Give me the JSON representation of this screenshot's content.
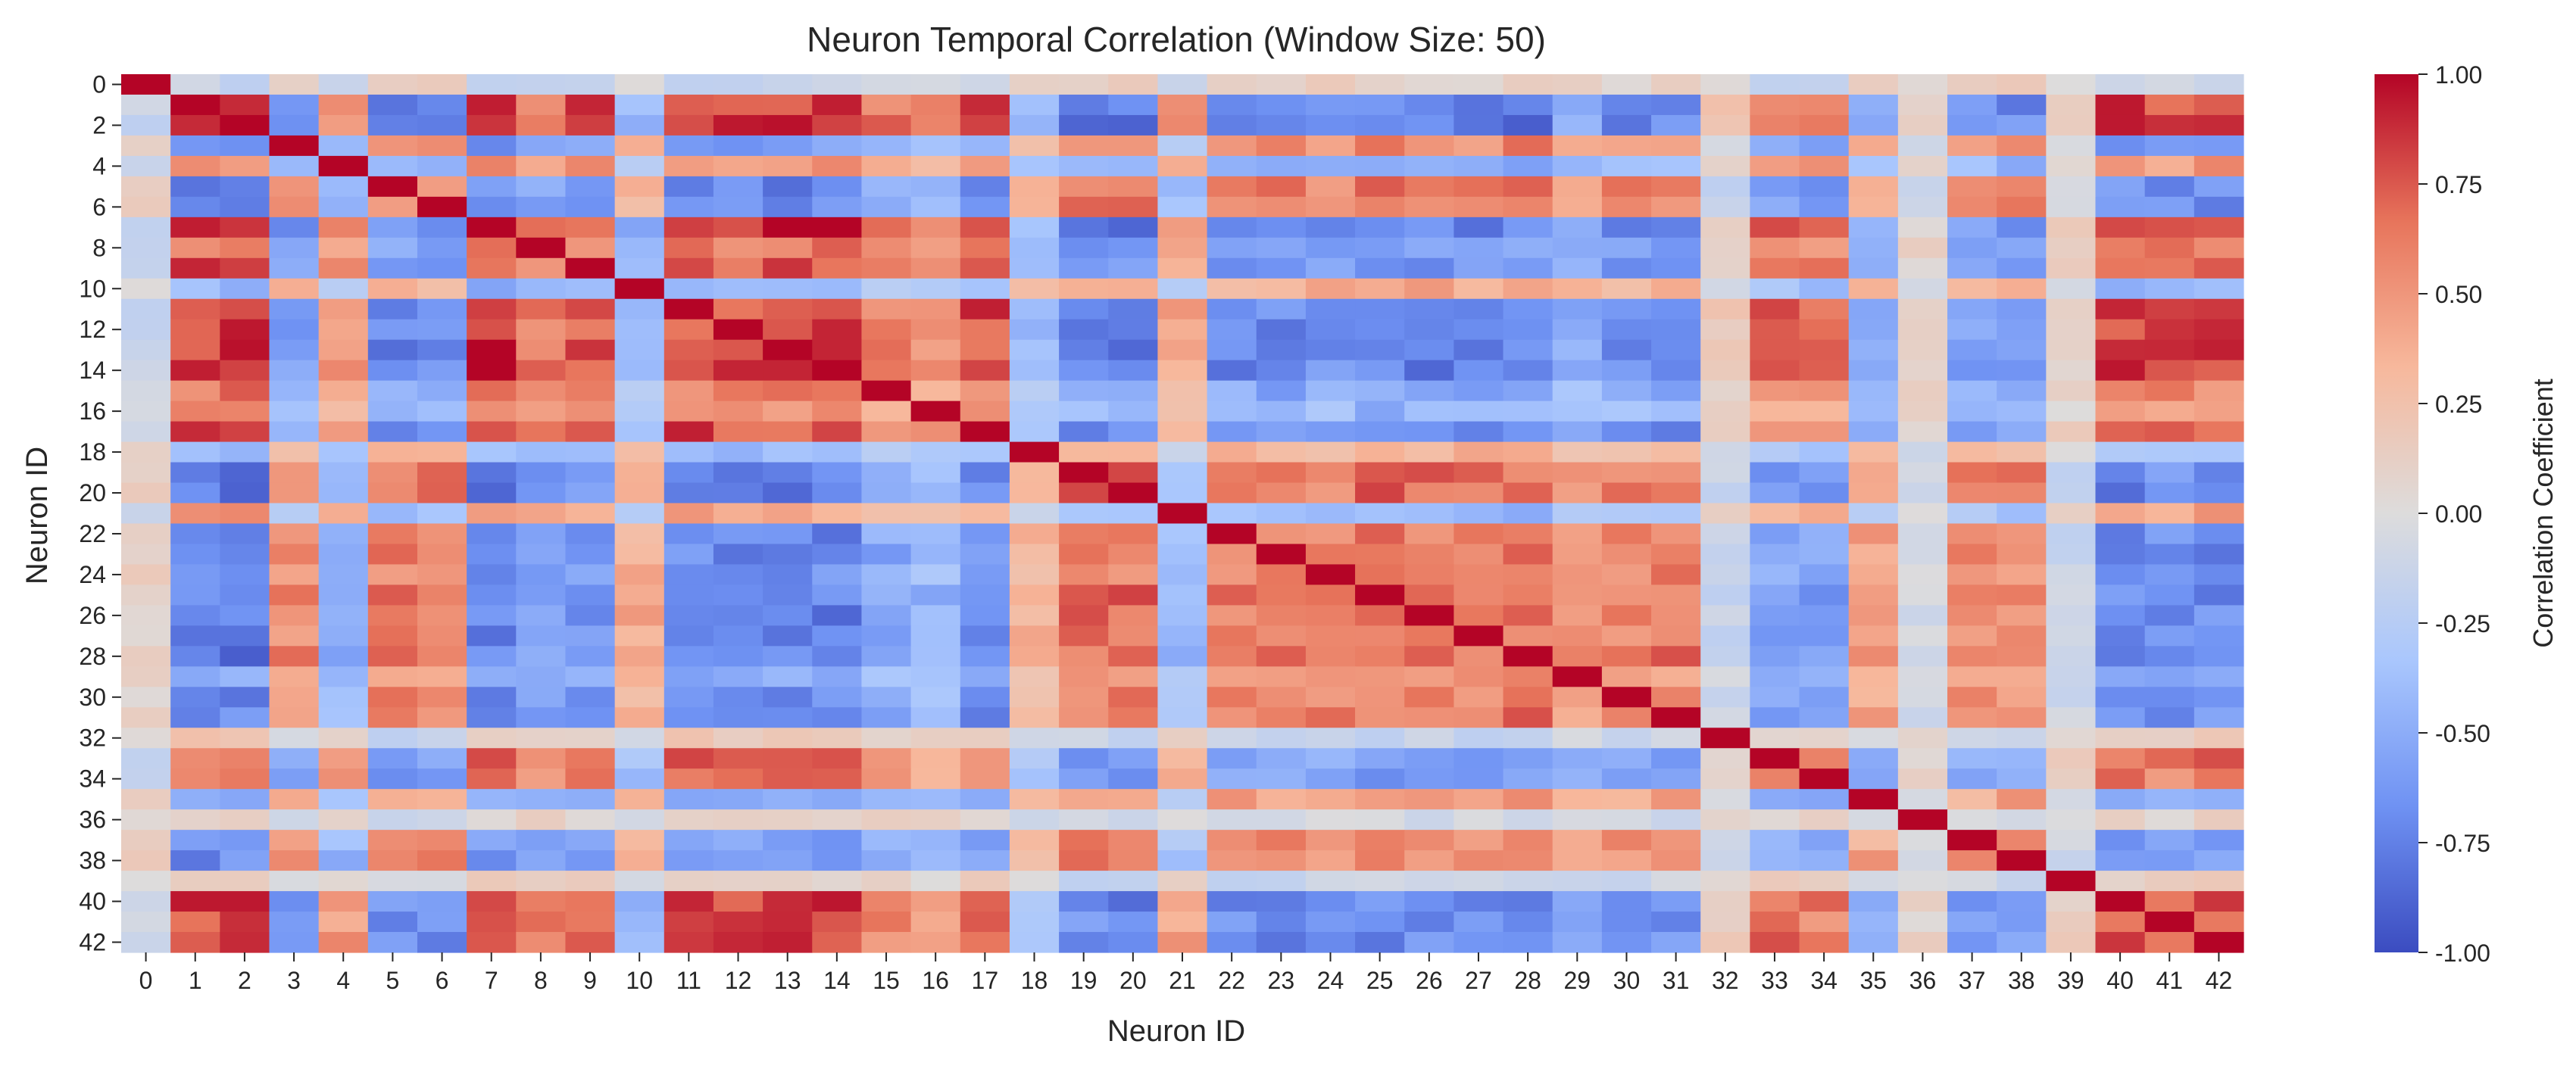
{
  "chart_data": {
    "type": "heatmap",
    "title": "Neuron Temporal Correlation (Window Size: 50)",
    "xlabel": "Neuron ID",
    "ylabel": "Neuron ID",
    "colorbar_label": "Correlation Coefficient",
    "colormap": "coolwarm",
    "colormap_stops": [
      "#3b4cc0",
      "#6f92f3",
      "#aac7fd",
      "#dddcdc",
      "#f7b89c",
      "#e7745b",
      "#b40426"
    ],
    "vmin": -1.0,
    "vmax": 1.0,
    "colorbar_ticks": [
      "-1.00",
      "-0.75",
      "-0.50",
      "-0.25",
      "0.00",
      "0.25",
      "0.50",
      "0.75",
      "1.00"
    ],
    "colorbar_tick_values": [
      -1.0,
      -0.75,
      -0.5,
      -0.25,
      0.0,
      0.25,
      0.5,
      0.75,
      1.0
    ],
    "x_tick_labels": [
      "0",
      "1",
      "2",
      "3",
      "4",
      "5",
      "6",
      "7",
      "8",
      "9",
      "10",
      "11",
      "12",
      "13",
      "14",
      "15",
      "16",
      "17",
      "18",
      "19",
      "20",
      "21",
      "22",
      "23",
      "24",
      "25",
      "26",
      "27",
      "28",
      "29",
      "30",
      "31",
      "32",
      "33",
      "34",
      "35",
      "36",
      "37",
      "38",
      "39",
      "40",
      "41",
      "42"
    ],
    "y_tick_labels": [
      "0",
      "2",
      "4",
      "6",
      "8",
      "10",
      "12",
      "14",
      "16",
      "18",
      "20",
      "22",
      "24",
      "26",
      "28",
      "30",
      "32",
      "34",
      "36",
      "38",
      "40",
      "42"
    ],
    "y_tick_positions": [
      0,
      2,
      4,
      6,
      8,
      10,
      12,
      14,
      16,
      18,
      20,
      22,
      24,
      26,
      28,
      30,
      32,
      34,
      36,
      38,
      40,
      42
    ],
    "n": 43,
    "groups": [
      1,
      0,
      0,
      1,
      0,
      1,
      1,
      0,
      0,
      0,
      1,
      0,
      0,
      0,
      0,
      0,
      0,
      0,
      1,
      1,
      1,
      0,
      1,
      1,
      1,
      1,
      1,
      1,
      1,
      1,
      1,
      1,
      0,
      0,
      0,
      1,
      0,
      1,
      1,
      0,
      0,
      0,
      0
    ],
    "strength": [
      0.15,
      0.95,
      0.95,
      0.7,
      0.6,
      0.8,
      0.75,
      0.95,
      0.75,
      0.85,
      0.5,
      0.95,
      0.9,
      0.95,
      0.95,
      0.7,
      0.55,
      0.85,
      0.45,
      0.85,
      0.85,
      0.5,
      0.8,
      0.8,
      0.75,
      0.85,
      0.8,
      0.8,
      0.85,
      0.6,
      0.75,
      0.8,
      0.2,
      0.75,
      0.75,
      0.6,
      0.1,
      0.7,
      0.75,
      0.15,
      0.9,
      0.85,
      0.9
    ]
  }
}
